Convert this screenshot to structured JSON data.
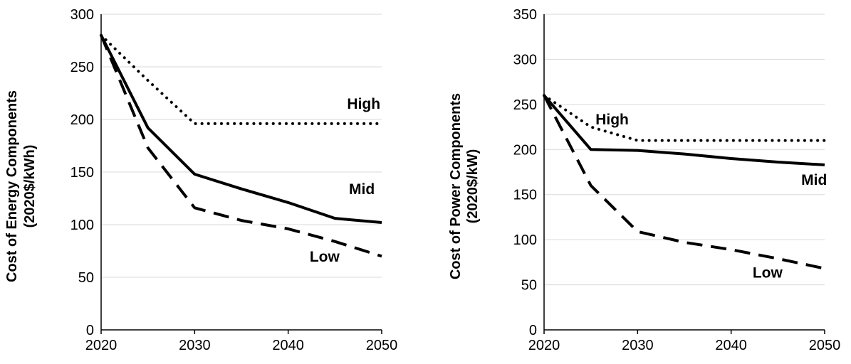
{
  "chart_data": [
    {
      "type": "line",
      "title": "",
      "ylabel_line1": "Cost of Energy Components",
      "ylabel_line2": "(2020$/kWh)",
      "xlabel": "",
      "x": [
        2020,
        2025,
        2030,
        2035,
        2040,
        2045,
        2050
      ],
      "xticks": [
        2020,
        2030,
        2040,
        2050
      ],
      "yticks": [
        0,
        50,
        100,
        150,
        200,
        250,
        300
      ],
      "xlim": [
        2020,
        2050
      ],
      "ylim": [
        0,
        300
      ],
      "grid": "horizontal",
      "series": [
        {
          "name": "High",
          "style": "dotted",
          "values": [
            280,
            237,
            196,
            196,
            196,
            196,
            196
          ]
        },
        {
          "name": "Mid",
          "style": "solid",
          "values": [
            280,
            192,
            148,
            134,
            121,
            106,
            102
          ]
        },
        {
          "name": "Low",
          "style": "dashed",
          "values": [
            280,
            173,
            116,
            104,
            96,
            84,
            70
          ]
        }
      ],
      "annotations": [
        {
          "text": "High",
          "x": 2046.3,
          "y": 210
        },
        {
          "text": "Mid",
          "x": 2046.5,
          "y": 129
        },
        {
          "text": "Low",
          "x": 2042.3,
          "y": 65
        }
      ]
    },
    {
      "type": "line",
      "title": "",
      "ylabel_line1": "Cost of Power Components",
      "ylabel_line2": "(2020$/kW)",
      "xlabel": "",
      "x": [
        2020,
        2025,
        2030,
        2035,
        2040,
        2045,
        2050
      ],
      "xticks": [
        2020,
        2030,
        2040,
        2050
      ],
      "yticks": [
        0,
        50,
        100,
        150,
        200,
        250,
        300,
        350
      ],
      "xlim": [
        2020,
        2050
      ],
      "ylim": [
        0,
        350
      ],
      "grid": "horizontal",
      "series": [
        {
          "name": "High",
          "style": "dotted",
          "values": [
            260,
            225,
            210,
            210,
            210,
            210,
            210
          ]
        },
        {
          "name": "Mid",
          "style": "solid",
          "values": [
            260,
            200,
            199,
            195,
            190,
            186,
            183
          ]
        },
        {
          "name": "Low",
          "style": "dashed",
          "values": [
            260,
            160,
            109,
            97,
            89,
            79,
            68
          ]
        }
      ],
      "annotations": [
        {
          "text": "High",
          "x": 2025.5,
          "y": 228
        },
        {
          "text": "Mid",
          "x": 2047.5,
          "y": 161
        },
        {
          "text": "Low",
          "x": 2042.3,
          "y": 58
        }
      ]
    }
  ]
}
